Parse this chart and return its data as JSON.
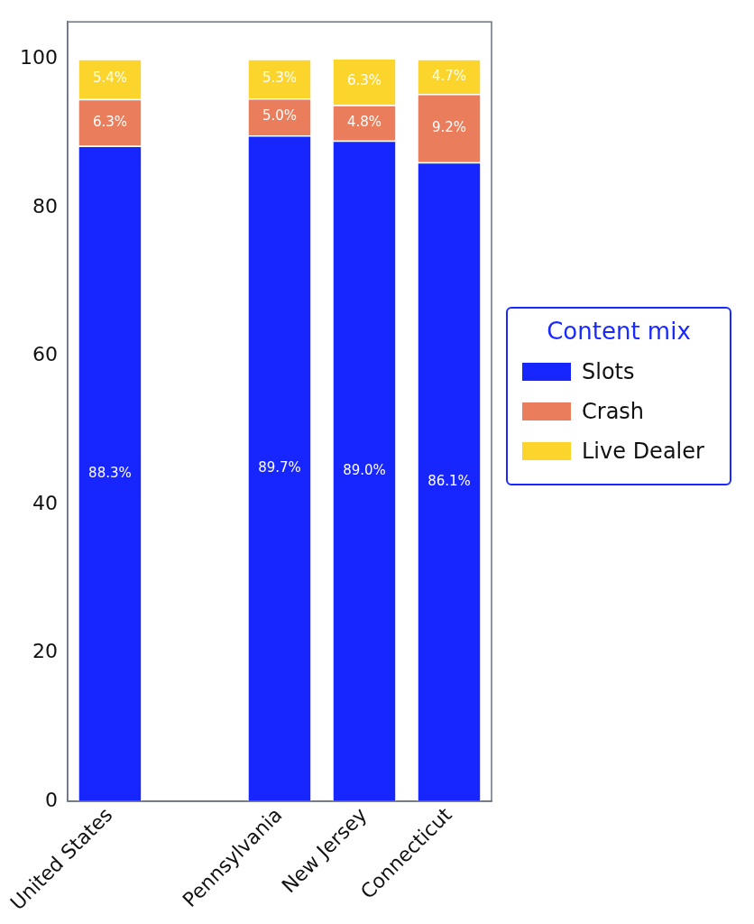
{
  "chart_data": {
    "type": "bar",
    "stacked": true,
    "categories": [
      "United States",
      null,
      "Pennsylvania",
      "New Jersey",
      "Connecticut"
    ],
    "series": [
      {
        "name": "Slots",
        "color": "#1726ff",
        "values": [
          88.3,
          null,
          89.7,
          89.0,
          86.1
        ],
        "value_labels": [
          "88.3%",
          null,
          "89.7%",
          "89.0%",
          "86.1%"
        ]
      },
      {
        "name": "Crash",
        "color": "#e97d5c",
        "values": [
          6.3,
          null,
          5.0,
          4.8,
          9.2
        ],
        "value_labels": [
          "6.3%",
          null,
          "5.0%",
          "4.8%",
          "9.2%"
        ]
      },
      {
        "name": "Live Dealer",
        "color": "#fbd52c",
        "values": [
          5.4,
          null,
          5.3,
          6.3,
          4.7
        ],
        "value_labels": [
          "5.4%",
          null,
          "5.3%",
          "6.3%",
          "4.7%"
        ]
      }
    ],
    "ylim": [
      0,
      105
    ],
    "yticks": [
      0,
      20,
      40,
      60,
      80,
      100
    ],
    "grid": false,
    "legend": "right",
    "legend_title": "Content mix"
  }
}
